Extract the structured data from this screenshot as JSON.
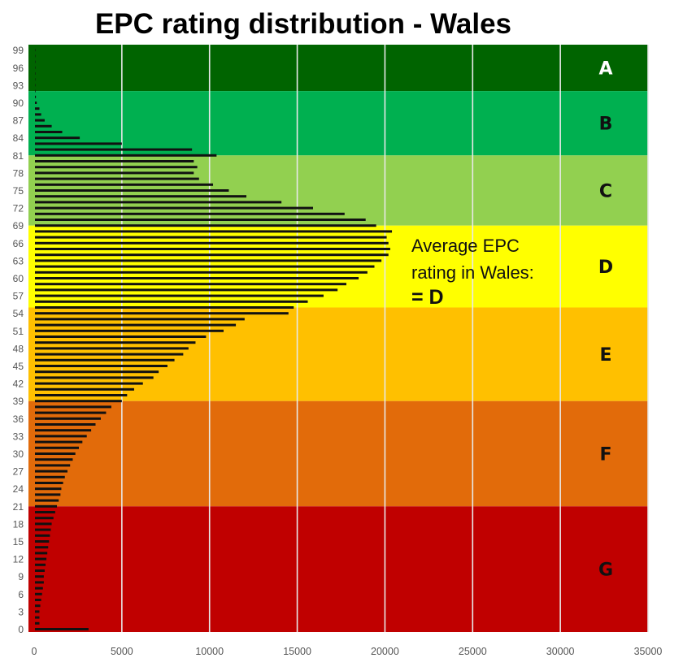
{
  "chart_data": {
    "type": "bar",
    "orientation": "horizontal",
    "title": "EPC rating distribution - Wales",
    "xlabel": "",
    "ylabel": "",
    "xlim": [
      0,
      35000
    ],
    "ylim": [
      0,
      100
    ],
    "x_ticks": [
      "0",
      "5000",
      "10000",
      "15000",
      "20000",
      "25000",
      "30000",
      "35000"
    ],
    "y_ticks": [
      "0",
      "3",
      "6",
      "9",
      "12",
      "15",
      "18",
      "21",
      "24",
      "27",
      "30",
      "33",
      "36",
      "39",
      "42",
      "45",
      "48",
      "51",
      "54",
      "57",
      "60",
      "63",
      "66",
      "69",
      "72",
      "75",
      "78",
      "81",
      "84",
      "87",
      "90",
      "93",
      "96",
      "99"
    ],
    "grid": "vertical",
    "bands": [
      {
        "label": "A",
        "from": 92,
        "to": 101,
        "color": "#006400",
        "label_color": "#ffffff"
      },
      {
        "label": "B",
        "from": 81,
        "to": 92,
        "color": "#00b050",
        "label_color": "#111111"
      },
      {
        "label": "C",
        "from": 69,
        "to": 81,
        "color": "#92d050",
        "label_color": "#111111"
      },
      {
        "label": "D",
        "from": 55,
        "to": 69,
        "color": "#ffff00",
        "label_color": "#111111"
      },
      {
        "label": "E",
        "from": 39,
        "to": 55,
        "color": "#ffc000",
        "label_color": "#111111"
      },
      {
        "label": "F",
        "from": 21,
        "to": 39,
        "color": "#e26b0a",
        "label_color": "#111111"
      },
      {
        "label": "G",
        "from": -1,
        "to": 21,
        "color": "#c00000",
        "label_color": "#111111"
      }
    ],
    "annotation": {
      "line1": "Average EPC",
      "line2": "rating in Wales:",
      "line3": "= D"
    },
    "categories": [
      0,
      1,
      2,
      3,
      4,
      5,
      6,
      7,
      8,
      9,
      10,
      11,
      12,
      13,
      14,
      15,
      16,
      17,
      18,
      19,
      20,
      21,
      22,
      23,
      24,
      25,
      26,
      27,
      28,
      29,
      30,
      31,
      32,
      33,
      34,
      35,
      36,
      37,
      38,
      39,
      40,
      41,
      42,
      43,
      44,
      45,
      46,
      47,
      48,
      49,
      50,
      51,
      52,
      53,
      54,
      55,
      56,
      57,
      58,
      59,
      60,
      61,
      62,
      63,
      64,
      65,
      66,
      67,
      68,
      69,
      70,
      71,
      72,
      73,
      74,
      75,
      76,
      77,
      78,
      79,
      80,
      81,
      82,
      83,
      84,
      85,
      86,
      87,
      88,
      89,
      90,
      91,
      92,
      93,
      94,
      95,
      96,
      97,
      98,
      99,
      100
    ],
    "values": [
      3100,
      300,
      300,
      300,
      350,
      400,
      450,
      500,
      550,
      550,
      600,
      650,
      700,
      750,
      800,
      850,
      900,
      950,
      1000,
      1100,
      1200,
      1300,
      1400,
      1500,
      1550,
      1650,
      1750,
      1900,
      2050,
      2200,
      2350,
      2550,
      2750,
      3000,
      3250,
      3500,
      3800,
      4100,
      4400,
      5000,
      5300,
      5700,
      6200,
      6800,
      7100,
      7600,
      8000,
      8500,
      8800,
      9200,
      9800,
      10800,
      11500,
      12000,
      14500,
      14800,
      15600,
      16500,
      17300,
      17800,
      18500,
      19000,
      19400,
      19800,
      20200,
      20300,
      20200,
      20100,
      20400,
      19500,
      18900,
      17700,
      15900,
      14100,
      12100,
      11100,
      10200,
      9400,
      9100,
      9300,
      9100,
      10400,
      9000,
      5000,
      2600,
      1600,
      1000,
      600,
      400,
      300,
      150,
      100,
      80,
      50,
      30,
      20,
      10,
      10,
      5,
      5,
      0
    ]
  }
}
